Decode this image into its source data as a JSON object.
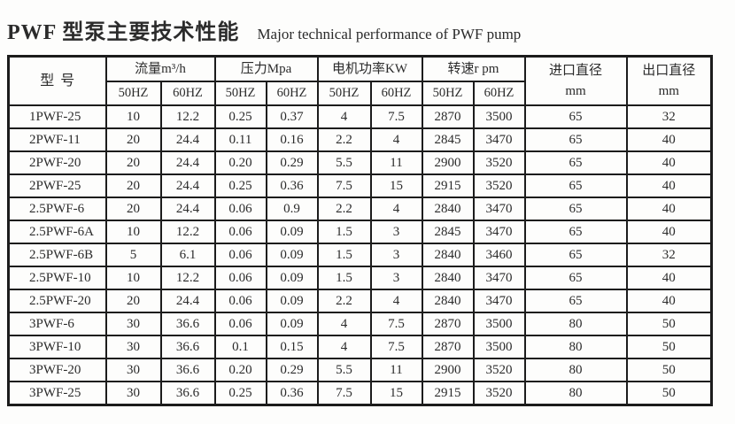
{
  "page": {
    "title_zh": "PWF 型泵主要技术性能",
    "title_en": "Major technical performance of PWF pump"
  },
  "table": {
    "model_header": "型号",
    "groups": [
      {
        "label": "流量m³/h",
        "sub": [
          "50HZ",
          "60HZ"
        ]
      },
      {
        "label": "压力Mpa",
        "sub": [
          "50HZ",
          "60HZ"
        ]
      },
      {
        "label": "电机功率KW",
        "sub": [
          "50HZ",
          "60HZ"
        ]
      },
      {
        "label": "转速r pm",
        "sub": [
          "50HZ",
          "60HZ"
        ]
      }
    ],
    "diameters": [
      {
        "label": "进口直径",
        "unit": "mm"
      },
      {
        "label": "出口直径",
        "unit": "mm"
      }
    ],
    "rows": [
      {
        "model": "1PWF-25",
        "values": [
          "10",
          "12.2",
          "0.25",
          "0.37",
          "4",
          "7.5",
          "2870",
          "3500",
          "65",
          "32"
        ]
      },
      {
        "model": "2PWF-11",
        "values": [
          "20",
          "24.4",
          "0.11",
          "0.16",
          "2.2",
          "4",
          "2845",
          "3470",
          "65",
          "40"
        ]
      },
      {
        "model": "2PWF-20",
        "values": [
          "20",
          "24.4",
          "0.20",
          "0.29",
          "5.5",
          "11",
          "2900",
          "3520",
          "65",
          "40"
        ]
      },
      {
        "model": "2PWF-25",
        "values": [
          "20",
          "24.4",
          "0.25",
          "0.36",
          "7.5",
          "15",
          "2915",
          "3520",
          "65",
          "40"
        ]
      },
      {
        "model": "2.5PWF-6",
        "values": [
          "20",
          "24.4",
          "0.06",
          "0.9",
          "2.2",
          "4",
          "2840",
          "3470",
          "65",
          "40"
        ]
      },
      {
        "model": "2.5PWF-6A",
        "values": [
          "10",
          "12.2",
          "0.06",
          "0.09",
          "1.5",
          "3",
          "2845",
          "3470",
          "65",
          "40"
        ]
      },
      {
        "model": "2.5PWF-6B",
        "values": [
          "5",
          "6.1",
          "0.06",
          "0.09",
          "1.5",
          "3",
          "2840",
          "3460",
          "65",
          "32"
        ]
      },
      {
        "model": "2.5PWF-10",
        "values": [
          "10",
          "12.2",
          "0.06",
          "0.09",
          "1.5",
          "3",
          "2840",
          "3470",
          "65",
          "40"
        ]
      },
      {
        "model": "2.5PWF-20",
        "values": [
          "20",
          "24.4",
          "0.06",
          "0.09",
          "2.2",
          "4",
          "2840",
          "3470",
          "65",
          "40"
        ]
      },
      {
        "model": "3PWF-6",
        "values": [
          "30",
          "36.6",
          "0.06",
          "0.09",
          "4",
          "7.5",
          "2870",
          "3500",
          "80",
          "50"
        ]
      },
      {
        "model": "3PWF-10",
        "values": [
          "30",
          "36.6",
          "0.1",
          "0.15",
          "4",
          "7.5",
          "2870",
          "3500",
          "80",
          "50"
        ]
      },
      {
        "model": "3PWF-20",
        "values": [
          "30",
          "36.6",
          "0.20",
          "0.29",
          "5.5",
          "11",
          "2900",
          "3520",
          "80",
          "50"
        ]
      },
      {
        "model": "3PWF-25",
        "values": [
          "30",
          "36.6",
          "0.25",
          "0.36",
          "7.5",
          "15",
          "2915",
          "3520",
          "80",
          "50"
        ]
      }
    ]
  }
}
